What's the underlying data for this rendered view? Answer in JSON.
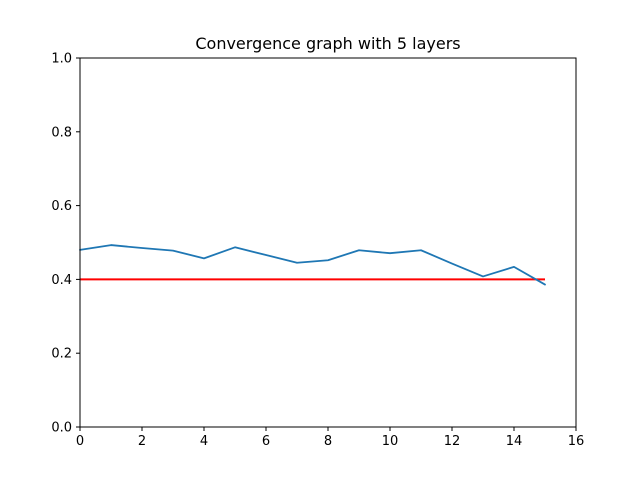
{
  "chart_data": {
    "type": "line",
    "title": "Convergence graph with 5 layers",
    "xlabel": "",
    "ylabel": "",
    "xlim": [
      0,
      16
    ],
    "ylim": [
      0.0,
      1.0
    ],
    "x_ticks": [
      0,
      2,
      4,
      6,
      8,
      10,
      12,
      14,
      16
    ],
    "y_ticks": [
      0.0,
      0.2,
      0.4,
      0.6,
      0.8,
      1.0
    ],
    "x_tick_labels": [
      "0",
      "2",
      "4",
      "6",
      "8",
      "10",
      "12",
      "14",
      "16"
    ],
    "y_tick_labels": [
      "0.0",
      "0.2",
      "0.4",
      "0.6",
      "0.8",
      "1.0"
    ],
    "grid": false,
    "series": [
      {
        "color": "#1f77b4",
        "x": [
          0,
          1,
          2,
          3,
          4,
          5,
          6,
          7,
          8,
          9,
          10,
          11,
          12,
          13,
          14,
          15
        ],
        "y": [
          0.48,
          0.493,
          0.485,
          0.478,
          0.457,
          0.487,
          0.466,
          0.445,
          0.452,
          0.479,
          0.471,
          0.479,
          0.443,
          0.408,
          0.434,
          0.386
        ]
      }
    ],
    "reference_lines": [
      {
        "color": "#ff0000",
        "y": 0.4,
        "x_start": 0,
        "x_end": 15
      }
    ]
  }
}
